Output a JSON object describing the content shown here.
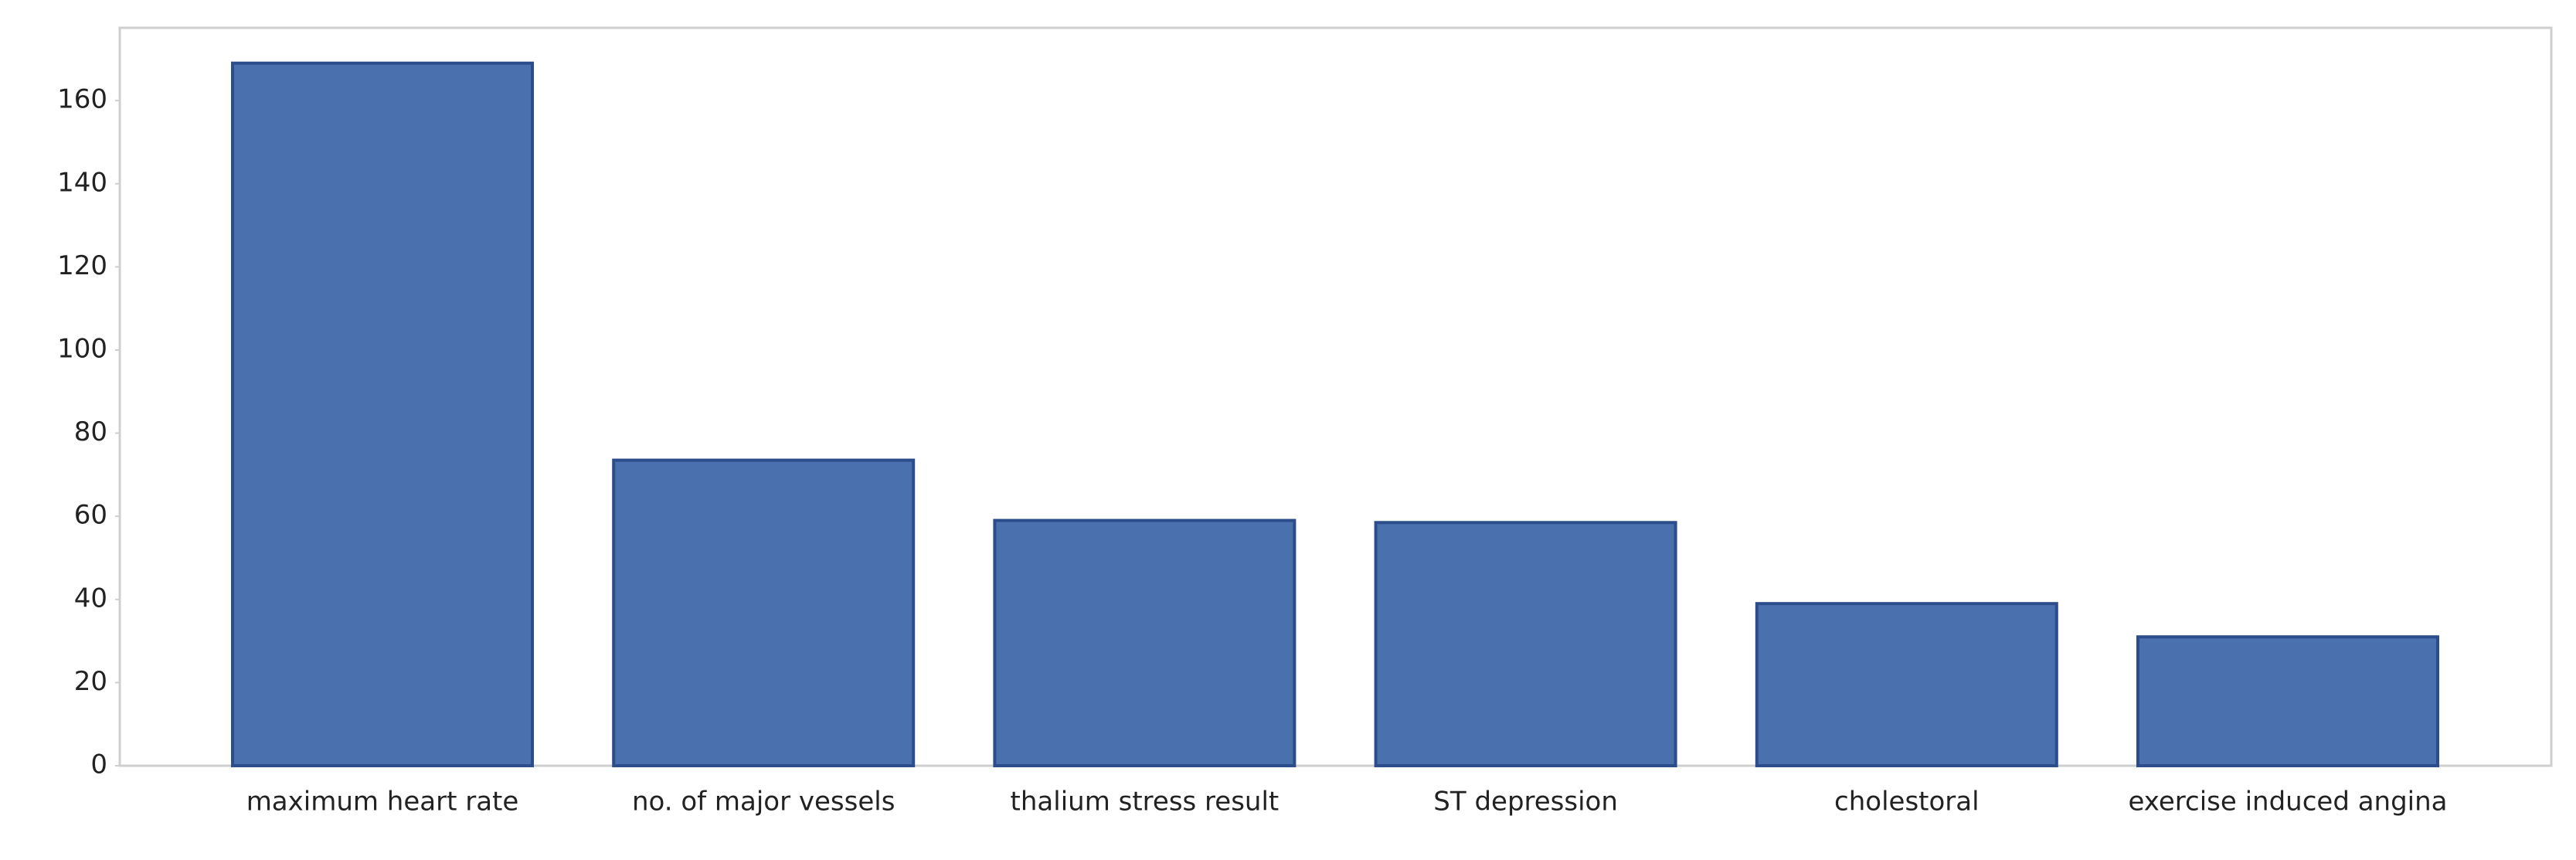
{
  "chart_data": {
    "type": "bar",
    "categories": [
      "maximum heart rate",
      "no. of major vessels",
      "thalium stress result",
      "ST depression",
      "cholestoral",
      "exercise induced angina"
    ],
    "values": [
      169,
      73.5,
      59,
      58.5,
      39,
      31
    ],
    "color": "#4a70ad",
    "ylim": [
      0,
      177.5
    ],
    "yticks": [
      0,
      20,
      40,
      60,
      80,
      100,
      120,
      140,
      160
    ],
    "grid": false
  }
}
